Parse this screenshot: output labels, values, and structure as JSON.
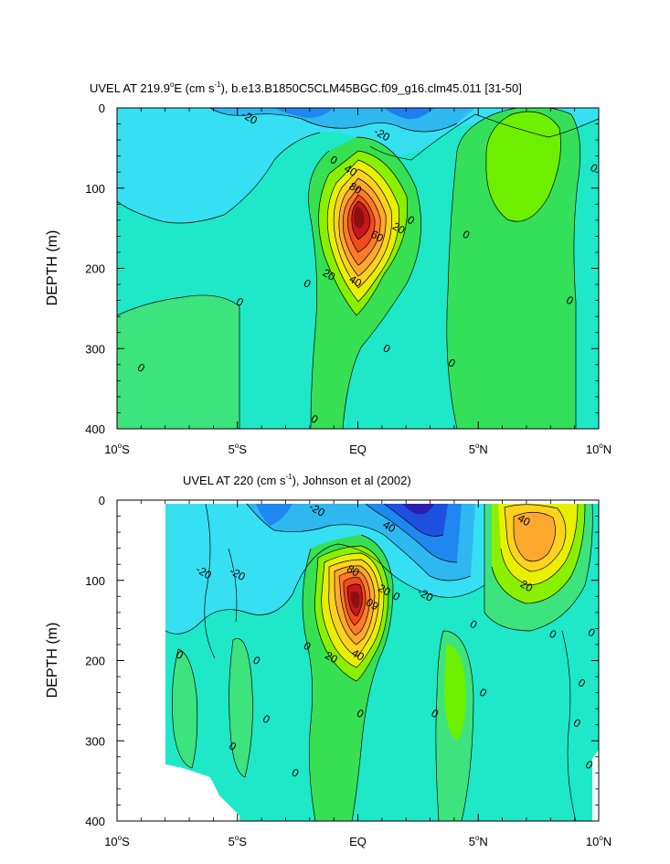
{
  "chart_data": [
    {
      "type": "contour",
      "title_main": "UVEL AT 219.9",
      "title_deg": "o",
      "title_e": "E (cm s",
      "title_exp": "-1",
      "title_rest": "), b.e13.B1850C5CLM45BGC.f09_g16.clm45.011 [31-50]",
      "ylabel": "DEPTH (m)",
      "xlim": [
        -10,
        10
      ],
      "ylim": [
        400,
        0
      ],
      "x_ticks": [
        {
          "value": -10,
          "num": "10",
          "deg": "o",
          "hemi": "S"
        },
        {
          "value": -5,
          "num": "5",
          "deg": "o",
          "hemi": "S"
        },
        {
          "value": 0,
          "num": "EQ",
          "deg": "",
          "hemi": ""
        },
        {
          "value": 5,
          "num": "5",
          "deg": "o",
          "hemi": "N"
        },
        {
          "value": 10,
          "num": "10",
          "deg": "o",
          "hemi": "N"
        }
      ],
      "y_ticks": [
        0,
        100,
        200,
        300,
        400
      ],
      "x_range_data": [
        -10,
        10
      ],
      "contour_labels": [
        {
          "text": "-20",
          "x": -4.5,
          "y": 12
        },
        {
          "text": "-20",
          "x": 1.0,
          "y": 33
        },
        {
          "text": "0",
          "x": -1.0,
          "y": 65
        },
        {
          "text": "40",
          "x": -0.3,
          "y": 78
        },
        {
          "text": "80",
          "x": -0.1,
          "y": 100
        },
        {
          "text": "0",
          "x": 9.8,
          "y": 75
        },
        {
          "text": "0",
          "x": 2.2,
          "y": 140
        },
        {
          "text": "20",
          "x": 1.7,
          "y": 150
        },
        {
          "text": "60",
          "x": 0.8,
          "y": 160
        },
        {
          "text": "0",
          "x": 4.5,
          "y": 158
        },
        {
          "text": "20",
          "x": -1.2,
          "y": 208
        },
        {
          "text": "40",
          "x": -0.1,
          "y": 216
        },
        {
          "text": "0",
          "x": -2.1,
          "y": 219
        },
        {
          "text": "0",
          "x": -4.9,
          "y": 242
        },
        {
          "text": "0",
          "x": 8.8,
          "y": 240
        },
        {
          "text": "0",
          "x": 1.2,
          "y": 300
        },
        {
          "text": "0",
          "x": -9.0,
          "y": 324
        },
        {
          "text": "0",
          "x": 3.9,
          "y": 318
        },
        {
          "text": "0",
          "x": -1.8,
          "y": 388
        }
      ]
    },
    {
      "type": "contour",
      "title_main": "UVEL AT 220 (cm s",
      "title_exp": "-1",
      "title_rest": "), Johnson et al (2002)",
      "ylabel": "DEPTH (m)",
      "xlim": [
        -10,
        10
      ],
      "ylim": [
        400,
        0
      ],
      "x_ticks": [
        {
          "value": -10,
          "num": "10",
          "deg": "o",
          "hemi": "S"
        },
        {
          "value": -5,
          "num": "5",
          "deg": "o",
          "hemi": "S"
        },
        {
          "value": 0,
          "num": "EQ",
          "deg": "",
          "hemi": ""
        },
        {
          "value": 5,
          "num": "5",
          "deg": "o",
          "hemi": "N"
        },
        {
          "value": 10,
          "num": "10",
          "deg": "o",
          "hemi": "N"
        }
      ],
      "y_ticks": [
        0,
        100,
        200,
        300,
        400
      ],
      "x_range_data": [
        -8,
        10
      ],
      "contour_labels": [
        {
          "text": "-20",
          "x": -1.7,
          "y": 12
        },
        {
          "text": "40",
          "x": 1.3,
          "y": 33
        },
        {
          "text": "-20",
          "x": -6.4,
          "y": 90
        },
        {
          "text": "-20",
          "x": -5.0,
          "y": 92
        },
        {
          "text": "40",
          "x": 6.9,
          "y": 25
        },
        {
          "text": "80",
          "x": -0.2,
          "y": 88
        },
        {
          "text": "20",
          "x": 1.1,
          "y": 112
        },
        {
          "text": "09",
          "x": 0.6,
          "y": 130
        },
        {
          "text": "-20",
          "x": 2.8,
          "y": 118
        },
        {
          "text": "20",
          "x": 7.0,
          "y": 107
        },
        {
          "text": "0",
          "x": 1.6,
          "y": 120
        },
        {
          "text": "0",
          "x": 4.8,
          "y": 155
        },
        {
          "text": "0",
          "x": 8.1,
          "y": 167
        },
        {
          "text": "0",
          "x": 9.7,
          "y": 165
        },
        {
          "text": "0",
          "x": -2.1,
          "y": 182
        },
        {
          "text": "40",
          "x": 0.0,
          "y": 193
        },
        {
          "text": "20",
          "x": -1.1,
          "y": 196
        },
        {
          "text": "0",
          "x": -7.4,
          "y": 193
        },
        {
          "text": "0",
          "x": -4.2,
          "y": 200
        },
        {
          "text": "0",
          "x": 9.3,
          "y": 228
        },
        {
          "text": "0",
          "x": 5.2,
          "y": 240
        },
        {
          "text": "0",
          "x": 0.1,
          "y": 266
        },
        {
          "text": "0",
          "x": 3.2,
          "y": 266
        },
        {
          "text": "0",
          "x": -3.8,
          "y": 273
        },
        {
          "text": "0",
          "x": 9.1,
          "y": 278
        },
        {
          "text": "0",
          "x": -5.2,
          "y": 307
        },
        {
          "text": "0",
          "x": 9.6,
          "y": 330
        },
        {
          "text": "0",
          "x": -2.6,
          "y": 340
        }
      ]
    }
  ]
}
